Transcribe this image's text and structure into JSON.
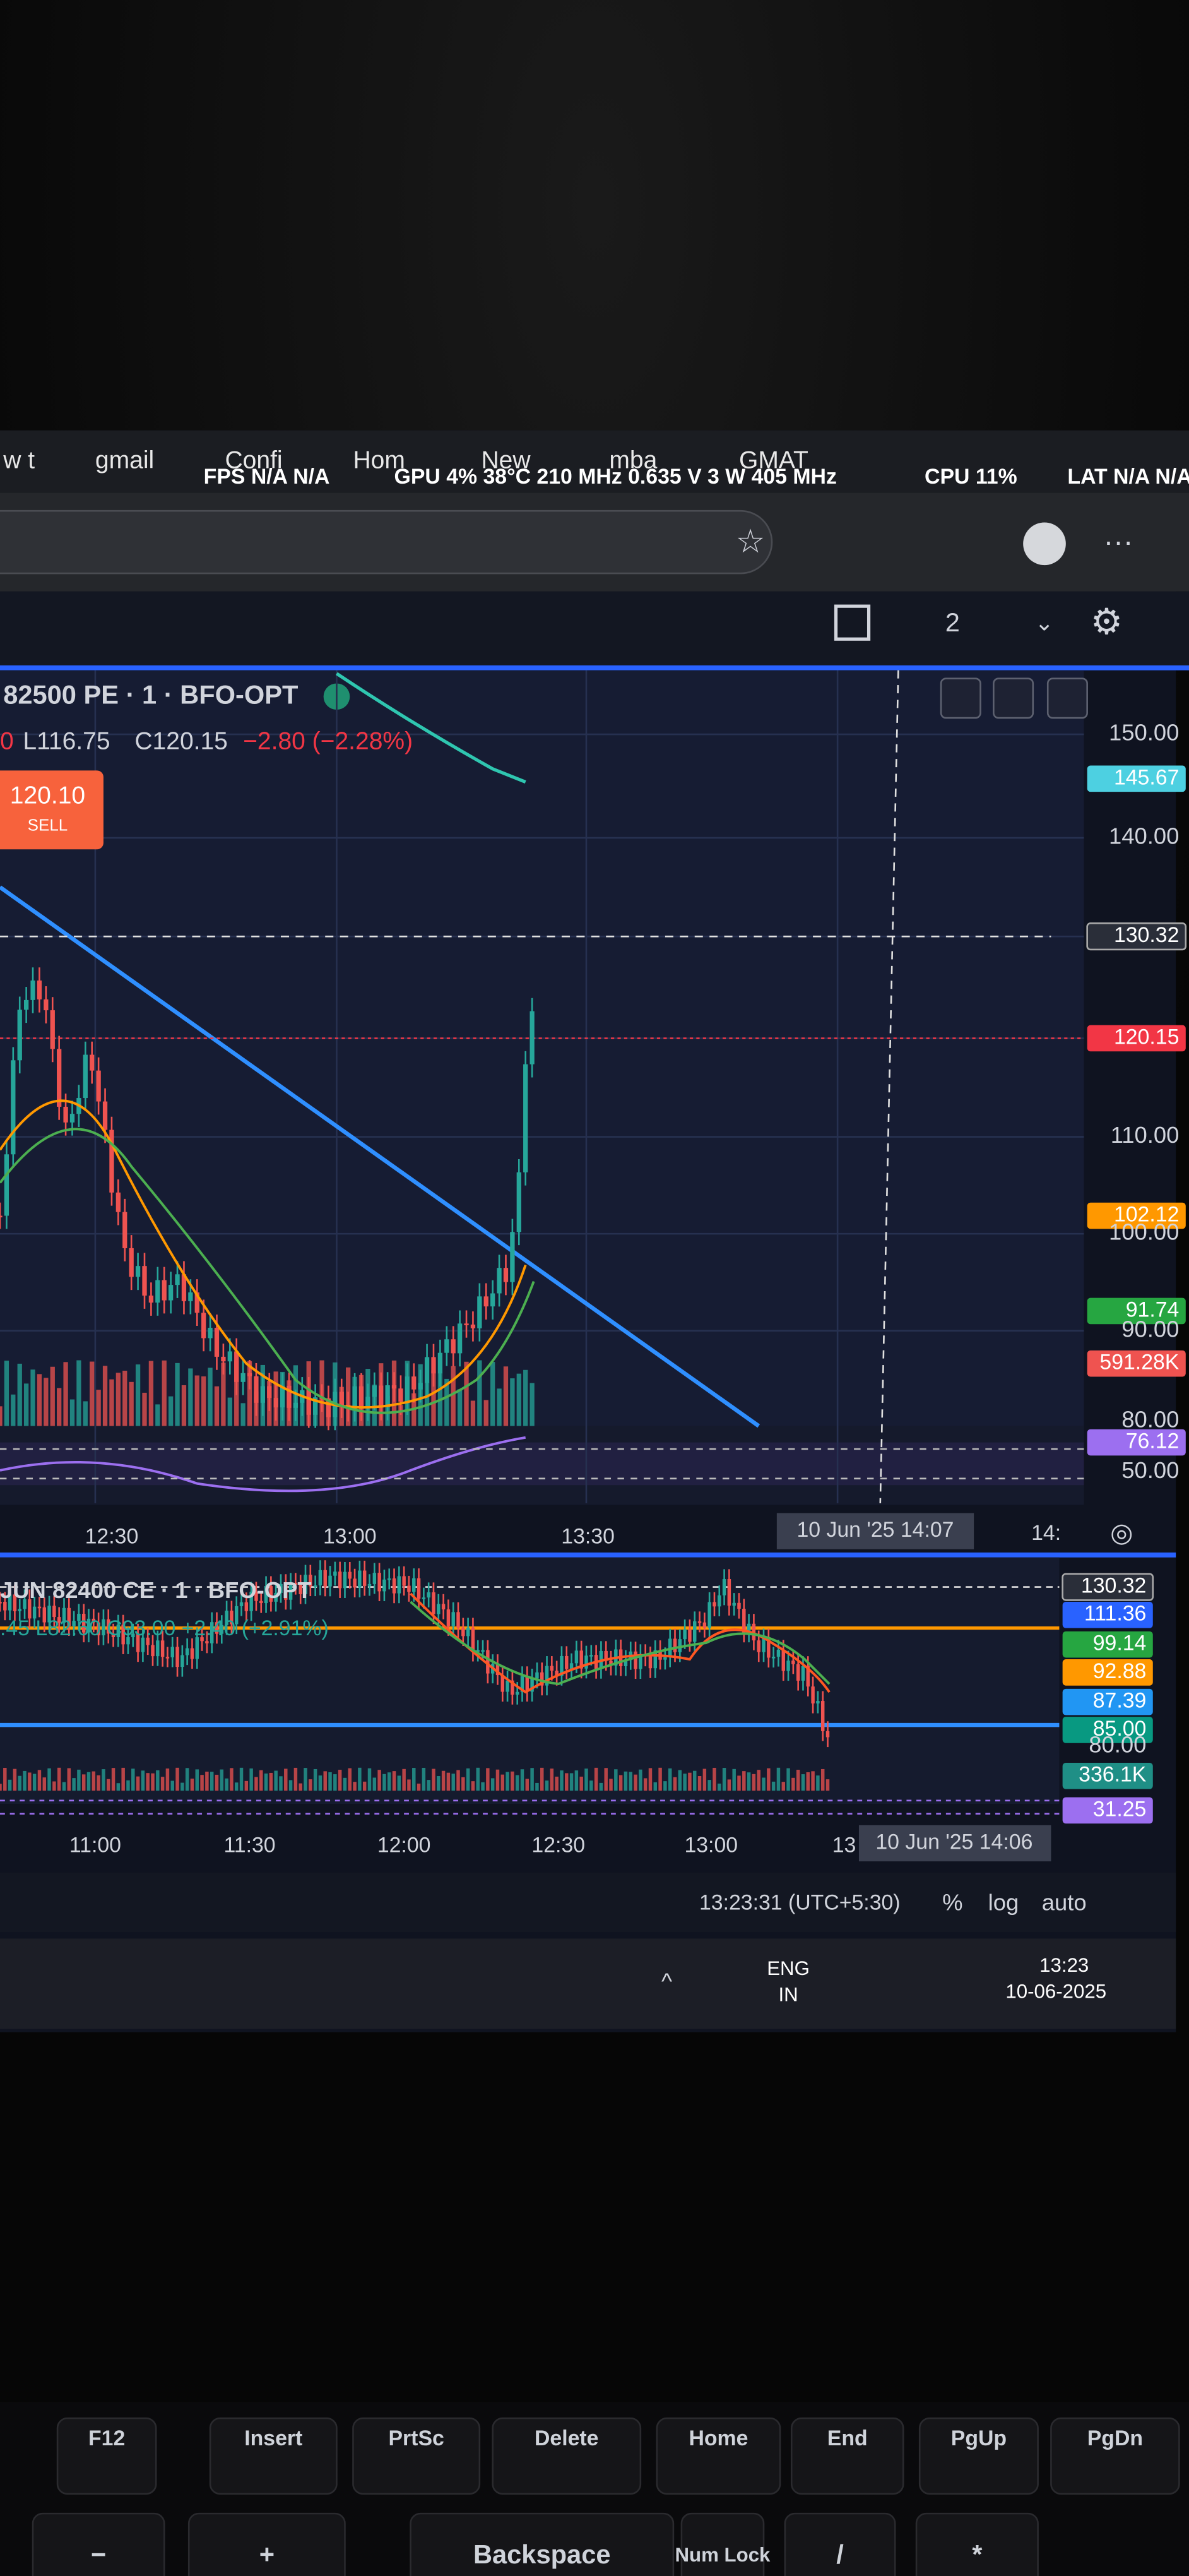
{
  "browser": {
    "bookmarks": [
      "w t",
      "gmail",
      "Confi",
      "Hom",
      "New",
      "mba",
      "GMAT"
    ],
    "overlay": {
      "fps": "FPS N/A N/A",
      "gpu": "GPU 4% 38°C 210 MHz 0.635 V 3 W 405 MHz",
      "cpu": "CPU 11%",
      "lat": "LAT N/A N/A"
    }
  },
  "toolbar": {
    "layout_count": "2"
  },
  "chart1": {
    "symbol": "82500 PE · 1 · BFO-OPT",
    "ohlc_prefix": "0",
    "low": "L116.75",
    "close": "C120.15",
    "change": "−2.80 (−2.28%)",
    "order": {
      "price": "120.10",
      "side": "SELL"
    },
    "price_labels": [
      {
        "text": "150.00"
      },
      {
        "text": "145.67",
        "color": "#4dd0e1"
      },
      {
        "text": "140.00"
      },
      {
        "text": "130.32",
        "color": "#2a2e39"
      },
      {
        "text": "120.15",
        "color": "#f23645"
      },
      {
        "text": "110.00"
      },
      {
        "text": "102.12",
        "color": "#ff9800"
      },
      {
        "text": "100.00"
      },
      {
        "text": "91.74",
        "color": "#26a641"
      },
      {
        "text": "90.00"
      },
      {
        "text": "591.28K",
        "color": "#ef5350"
      },
      {
        "text": "80.00"
      },
      {
        "text": "76.12",
        "color": "#9c6ff0"
      },
      {
        "text": "50.00"
      }
    ],
    "time_labels": [
      "12:30",
      "13:00",
      "13:30"
    ],
    "crosshair_time": "10 Jun '25  14:07",
    "edge_time": "14:"
  },
  "chart2": {
    "symbol": "JUN 82400 CE · 1 · BFO-OPT",
    "ohlc": ".45 L82.60 C93.00 +2.40 (+2.91%)",
    "price_labels": [
      {
        "text": "130.32",
        "color": "#2a2e39"
      },
      {
        "text": "111.36",
        "color": "#2962ff"
      },
      {
        "text": "99.14",
        "color": "#26a641"
      },
      {
        "text": "92.88",
        "color": "#ff9800"
      },
      {
        "text": "87.39",
        "color": "#2196f3"
      },
      {
        "text": "85.00",
        "color": "#089981"
      },
      {
        "text": "80.00"
      },
      {
        "text": "336.1K",
        "color": "#1f8f86"
      },
      {
        "text": "31.25",
        "color": "#9c6ff0"
      }
    ],
    "time_labels": [
      "11:00",
      "11:30",
      "12:00",
      "12:30",
      "13:00",
      "13"
    ],
    "crosshair_time": "10 Jun '25  14:06"
  },
  "status": {
    "clock": "13:23:31 (UTC+5:30)",
    "percent": "%",
    "log": "log",
    "auto": "auto"
  },
  "taskbar": {
    "lang": "ENG",
    "region": "IN",
    "time": "13:23",
    "date": "10-06-2025"
  },
  "keyboard": {
    "row1": [
      "F12",
      "Insert",
      "PrtSc",
      "Delete",
      "Home",
      "End",
      "PgUp",
      "PgDn"
    ],
    "row2": [
      "−",
      "+",
      "Backspace",
      "Num Lock",
      "/",
      "*"
    ]
  }
}
